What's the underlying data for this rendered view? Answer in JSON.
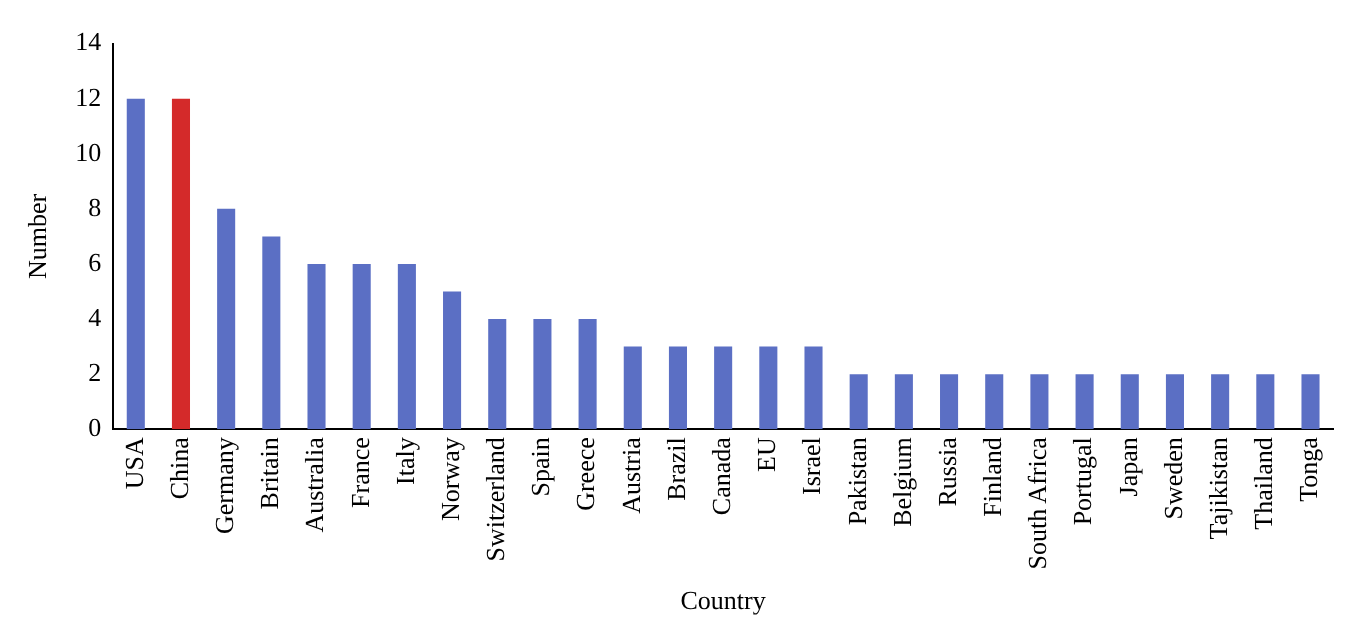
{
  "chart_data": {
    "type": "bar",
    "xlabel": "Country",
    "ylabel": "Number",
    "categories": [
      "USA",
      "China",
      "Germany",
      "Britain",
      "Australia",
      "France",
      "Italy",
      "Norway",
      "Switzerland",
      "Spain",
      "Greece",
      "Austria",
      "Brazil",
      "Canada",
      "EU",
      "Israel",
      "Pakistan",
      "Belgium",
      "Russia",
      "Finland",
      "South Africa",
      "Portugal",
      "Japan",
      "Sweden",
      "Tajikistan",
      "Thailand",
      "Tonga"
    ],
    "values": [
      12,
      12,
      8,
      7,
      6,
      6,
      6,
      5,
      4,
      4,
      4,
      3,
      3,
      3,
      3,
      3,
      2,
      2,
      2,
      2,
      2,
      2,
      2,
      2,
      2,
      2,
      2
    ],
    "colors": [
      "#5b6fc4",
      "#d42a2a",
      "#5b6fc4",
      "#5b6fc4",
      "#5b6fc4",
      "#5b6fc4",
      "#5b6fc4",
      "#5b6fc4",
      "#5b6fc4",
      "#5b6fc4",
      "#5b6fc4",
      "#5b6fc4",
      "#5b6fc4",
      "#5b6fc4",
      "#5b6fc4",
      "#5b6fc4",
      "#5b6fc4",
      "#5b6fc4",
      "#5b6fc4",
      "#5b6fc4",
      "#5b6fc4",
      "#5b6fc4",
      "#5b6fc4",
      "#5b6fc4",
      "#5b6fc4",
      "#5b6fc4",
      "#5b6fc4"
    ],
    "ylim": [
      0,
      14
    ],
    "yticks": [
      0,
      2,
      4,
      6,
      8,
      10,
      12,
      14
    ],
    "grid": false,
    "legend": false
  }
}
